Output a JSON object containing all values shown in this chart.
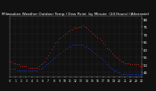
{
  "title": "Milwaukee Weather Outdoor Temp / Dew Point  by Minute  (24 Hours) (Alternate)",
  "title_fontsize": 3.0,
  "bg_color": "#111111",
  "plot_bg_color": "#111111",
  "grid_color": "#444444",
  "temp_color": "#ff2020",
  "dew_color": "#2040ff",
  "ylim": [
    42,
    82
  ],
  "yticks": [
    45,
    50,
    55,
    60,
    65,
    70,
    75,
    80
  ],
  "ytick_labels": [
    "45",
    "50",
    "55",
    "60",
    "65",
    "70",
    "75",
    "80"
  ],
  "xlim": [
    0,
    1440
  ],
  "xticks": [
    0,
    60,
    120,
    180,
    240,
    300,
    360,
    420,
    480,
    540,
    600,
    660,
    720,
    780,
    840,
    900,
    960,
    1020,
    1080,
    1140,
    1200,
    1260,
    1320,
    1380,
    1440
  ],
  "xtick_labels": [
    "0",
    "1",
    "2",
    "3",
    "4",
    "5",
    "6",
    "7",
    "8",
    "9",
    "10",
    "11",
    "12",
    "13",
    "14",
    "15",
    "16",
    "17",
    "18",
    "19",
    "20",
    "21",
    "22",
    "23",
    "24"
  ],
  "temp_x": [
    0,
    20,
    40,
    60,
    80,
    100,
    120,
    140,
    160,
    180,
    200,
    220,
    240,
    260,
    280,
    300,
    320,
    340,
    360,
    380,
    400,
    420,
    440,
    460,
    480,
    500,
    520,
    540,
    560,
    580,
    600,
    620,
    640,
    660,
    680,
    700,
    720,
    740,
    760,
    780,
    800,
    820,
    840,
    860,
    880,
    900,
    920,
    940,
    960,
    980,
    1000,
    1020,
    1040,
    1060,
    1080,
    1100,
    1120,
    1140,
    1160,
    1180,
    1200,
    1220,
    1240,
    1260,
    1280,
    1300,
    1320,
    1340,
    1360,
    1380,
    1400,
    1420,
    1440
  ],
  "temp_y": [
    52,
    52,
    51,
    51,
    50,
    50,
    49,
    49,
    49,
    49,
    48,
    48,
    48,
    48,
    48,
    48,
    49,
    50,
    51,
    52,
    54,
    56,
    58,
    60,
    62,
    64,
    65,
    67,
    68,
    69,
    70,
    71,
    72,
    73,
    73,
    74,
    74,
    74,
    75,
    75,
    76,
    75,
    74,
    73,
    72,
    71,
    70,
    69,
    68,
    67,
    66,
    64,
    63,
    61,
    60,
    59,
    57,
    56,
    55,
    54,
    53,
    52,
    52,
    51,
    51,
    51,
    50,
    50,
    50,
    50,
    50,
    49,
    49
  ],
  "dew_x": [
    0,
    20,
    40,
    60,
    80,
    100,
    120,
    140,
    160,
    180,
    200,
    220,
    240,
    260,
    280,
    300,
    320,
    340,
    360,
    380,
    400,
    420,
    440,
    460,
    480,
    500,
    520,
    540,
    560,
    580,
    600,
    620,
    640,
    660,
    680,
    700,
    720,
    740,
    760,
    780,
    800,
    820,
    840,
    860,
    880,
    900,
    920,
    940,
    960,
    980,
    1000,
    1020,
    1040,
    1060,
    1080,
    1100,
    1120,
    1140,
    1160,
    1180,
    1200,
    1220,
    1240,
    1260,
    1280,
    1300,
    1320,
    1340,
    1360,
    1380,
    1400,
    1420,
    1440
  ],
  "dew_y": [
    47,
    47,
    47,
    47,
    46,
    46,
    46,
    46,
    46,
    46,
    46,
    46,
    46,
    46,
    46,
    46,
    47,
    47,
    48,
    49,
    50,
    51,
    52,
    53,
    54,
    55,
    56,
    57,
    58,
    59,
    60,
    61,
    62,
    62,
    63,
    63,
    63,
    63,
    63,
    63,
    63,
    62,
    62,
    61,
    60,
    59,
    58,
    57,
    56,
    55,
    54,
    53,
    52,
    50,
    49,
    48,
    47,
    46,
    46,
    45,
    45,
    44,
    44,
    44,
    44,
    44,
    44,
    44,
    44,
    44,
    44,
    44,
    44
  ]
}
